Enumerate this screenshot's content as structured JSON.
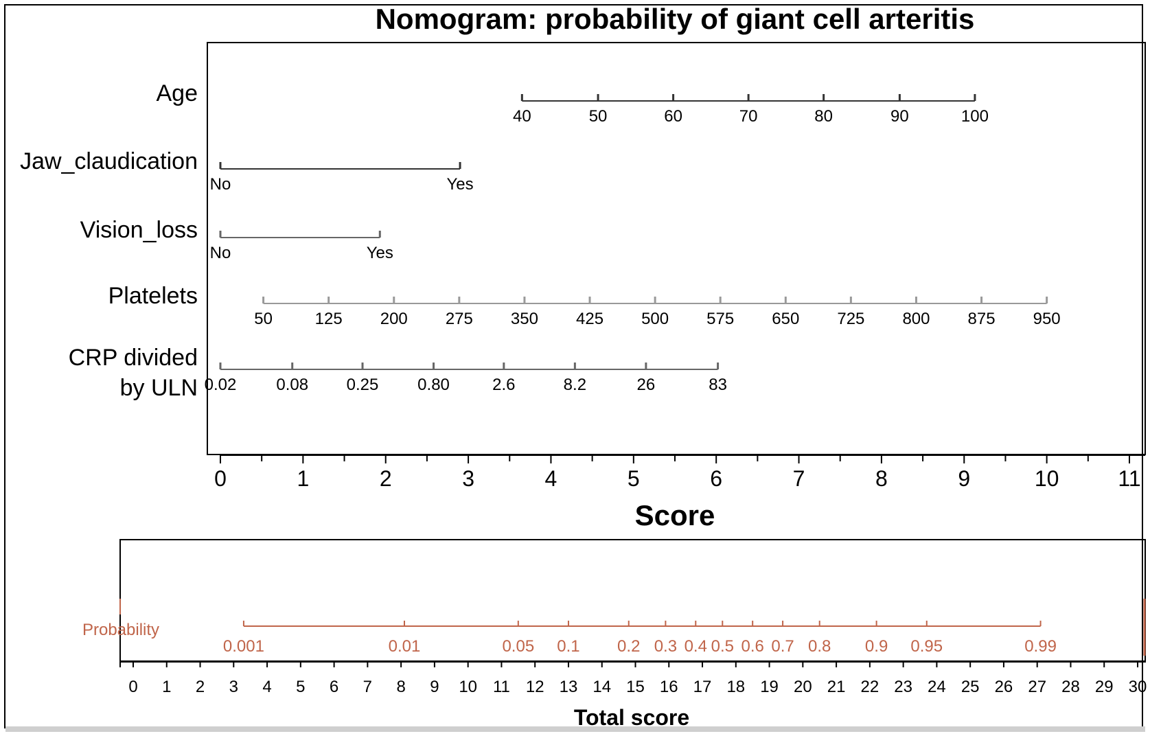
{
  "colors": {
    "axis": "#000000",
    "scale_dark": "#333333",
    "scale_mid": "#666666",
    "scale_light": "#999999",
    "probability": "#c0654a"
  },
  "chart_data": {
    "type": "nomogram",
    "title": "Nomogram: probability of giant cell arteritis",
    "score_axis": {
      "label": "Score",
      "range": [
        0,
        11
      ],
      "ticks": [
        "0",
        "1",
        "2",
        "3",
        "4",
        "5",
        "6",
        "7",
        "8",
        "9",
        "10",
        "11"
      ]
    },
    "variables": [
      {
        "name": "Age",
        "points": [
          {
            "label": "40",
            "score": 3.65
          },
          {
            "label": "50",
            "score": 4.57
          },
          {
            "label": "60",
            "score": 5.48
          },
          {
            "label": "70",
            "score": 6.39
          },
          {
            "label": "80",
            "score": 7.3
          },
          {
            "label": "90",
            "score": 8.22
          },
          {
            "label": "100",
            "score": 9.13
          }
        ]
      },
      {
        "name": "Jaw_claudication",
        "points": [
          {
            "label": "No",
            "score": 0
          },
          {
            "label": "Yes",
            "score": 2.9
          }
        ]
      },
      {
        "name": "Vision_loss",
        "points": [
          {
            "label": "No",
            "score": 0
          },
          {
            "label": "Yes",
            "score": 1.93
          }
        ]
      },
      {
        "name": "Platelets",
        "points": [
          {
            "label": "50",
            "score": 0.52
          },
          {
            "label": "125",
            "score": 1.31
          },
          {
            "label": "200",
            "score": 2.1
          },
          {
            "label": "275",
            "score": 2.89
          },
          {
            "label": "350",
            "score": 3.68
          },
          {
            "label": "425",
            "score": 4.47
          },
          {
            "label": "500",
            "score": 5.26
          },
          {
            "label": "575",
            "score": 6.05
          },
          {
            "label": "650",
            "score": 6.84
          },
          {
            "label": "725",
            "score": 7.63
          },
          {
            "label": "800",
            "score": 8.42
          },
          {
            "label": "875",
            "score": 9.21
          },
          {
            "label": "950",
            "score": 10.0
          }
        ]
      },
      {
        "name": "CRP divided by ULN",
        "name_lines": [
          "CRP divided",
          "by ULN"
        ],
        "points": [
          {
            "label": "0.02",
            "score": 0
          },
          {
            "label": "0.08",
            "score": 0.87
          },
          {
            "label": "0.25",
            "score": 1.72
          },
          {
            "label": "0.80",
            "score": 2.58
          },
          {
            "label": "2.6",
            "score": 3.43
          },
          {
            "label": "8.2",
            "score": 4.29
          },
          {
            "label": "26",
            "score": 5.15
          },
          {
            "label": "83",
            "score": 6.02
          }
        ]
      }
    ],
    "total_axis": {
      "label": "Total score",
      "range": [
        0,
        30
      ],
      "ticks": [
        "0",
        "1",
        "2",
        "3",
        "4",
        "5",
        "6",
        "7",
        "8",
        "9",
        "10",
        "11",
        "12",
        "13",
        "14",
        "15",
        "16",
        "17",
        "18",
        "19",
        "20",
        "21",
        "22",
        "23",
        "24",
        "25",
        "26",
        "27",
        "28",
        "29",
        "30"
      ]
    },
    "probability": {
      "name": "Probability",
      "points": [
        {
          "label": "0.001",
          "total": 3.3
        },
        {
          "label": "0.01",
          "total": 8.1
        },
        {
          "label": "0.05",
          "total": 11.5
        },
        {
          "label": "0.1",
          "total": 13.0
        },
        {
          "label": "0.2",
          "total": 14.8
        },
        {
          "label": "0.3",
          "total": 15.9
        },
        {
          "label": "0.4",
          "total": 16.8
        },
        {
          "label": "0.5",
          "total": 17.6
        },
        {
          "label": "0.6",
          "total": 18.5
        },
        {
          "label": "0.7",
          "total": 19.4
        },
        {
          "label": "0.8",
          "total": 20.5
        },
        {
          "label": "0.9",
          "total": 22.2
        },
        {
          "label": "0.95",
          "total": 23.7
        },
        {
          "label": "0.99",
          "total": 27.1
        }
      ]
    }
  }
}
